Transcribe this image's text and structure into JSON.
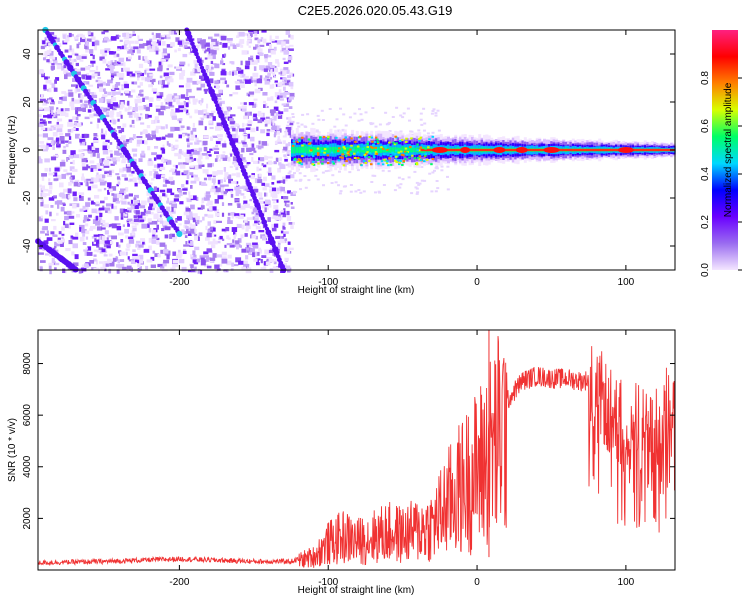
{
  "figure_title": "C2E5.2026.020.05.43.G19",
  "chart_data": [
    {
      "type": "heatmap",
      "name": "spectrogram",
      "xlabel": "Height of straight line (km)",
      "ylabel": "Frequency (Hz)",
      "xlim": [
        -295,
        133
      ],
      "ylim": [
        -50,
        50
      ],
      "xticks": [
        -200,
        -100,
        0,
        100
      ],
      "yticks": [
        -40,
        -20,
        0,
        20,
        40
      ],
      "colorbar": {
        "label": "Normalized spectral amplitude",
        "range": [
          0,
          1
        ],
        "ticks": [
          0.0,
          0.2,
          0.4,
          0.6,
          0.8
        ],
        "tick_labels": [
          "0.0",
          "0.2",
          "0.4",
          "0.6",
          "0.8"
        ],
        "colormap": [
          "#f4e6ff",
          "#9a6cf0",
          "#6a00ff",
          "#0000ff",
          "#00d8ff",
          "#00ff66",
          "#d8ff00",
          "#ff8000",
          "#ff0000",
          "#ff2080"
        ]
      },
      "features": {
        "noise_region_x": [
          -295,
          -125
        ],
        "carrier_band": {
          "x": [
            -125,
            133
          ],
          "frequency": 0,
          "halfwidth_start": 8,
          "halfwidth_end": 3
        },
        "doppler_trace_a": {
          "x": [
            -290,
            -200
          ],
          "frequency": [
            50,
            -35
          ]
        },
        "doppler_trace_b": {
          "x": [
            -195,
            -130
          ],
          "frequency": [
            50,
            -50
          ]
        },
        "doppler_trace_c": {
          "x": [
            -295,
            -265
          ],
          "frequency": [
            -38,
            -52
          ]
        }
      }
    },
    {
      "type": "line",
      "name": "snr",
      "xlabel": "Height of straight line (km)",
      "ylabel": "SNR (10 * v/v)",
      "xlim": [
        -295,
        133
      ],
      "ylim": [
        0,
        9300
      ],
      "xticks": [
        -200,
        -100,
        0,
        100
      ],
      "yticks": [
        2000,
        4000,
        6000,
        8000
      ],
      "color": "#f03232",
      "series": [
        {
          "name": "SNR",
          "x": [
            -295,
            -250,
            -200,
            -150,
            -125,
            -110,
            -100,
            -90,
            -80,
            -70,
            -60,
            -50,
            -40,
            -30,
            -20,
            -10,
            0,
            10,
            20,
            30,
            40,
            50,
            60,
            70,
            80,
            90,
            100,
            110,
            120,
            133
          ],
          "values": [
            300,
            350,
            450,
            350,
            350,
            600,
            1200,
            1500,
            1300,
            1500,
            1700,
            1600,
            1800,
            2000,
            3000,
            3800,
            4500,
            5500,
            6600,
            7400,
            7600,
            7500,
            7500,
            7400,
            7500,
            6400,
            6000,
            5800,
            5600,
            7200
          ]
        }
      ]
    }
  ]
}
